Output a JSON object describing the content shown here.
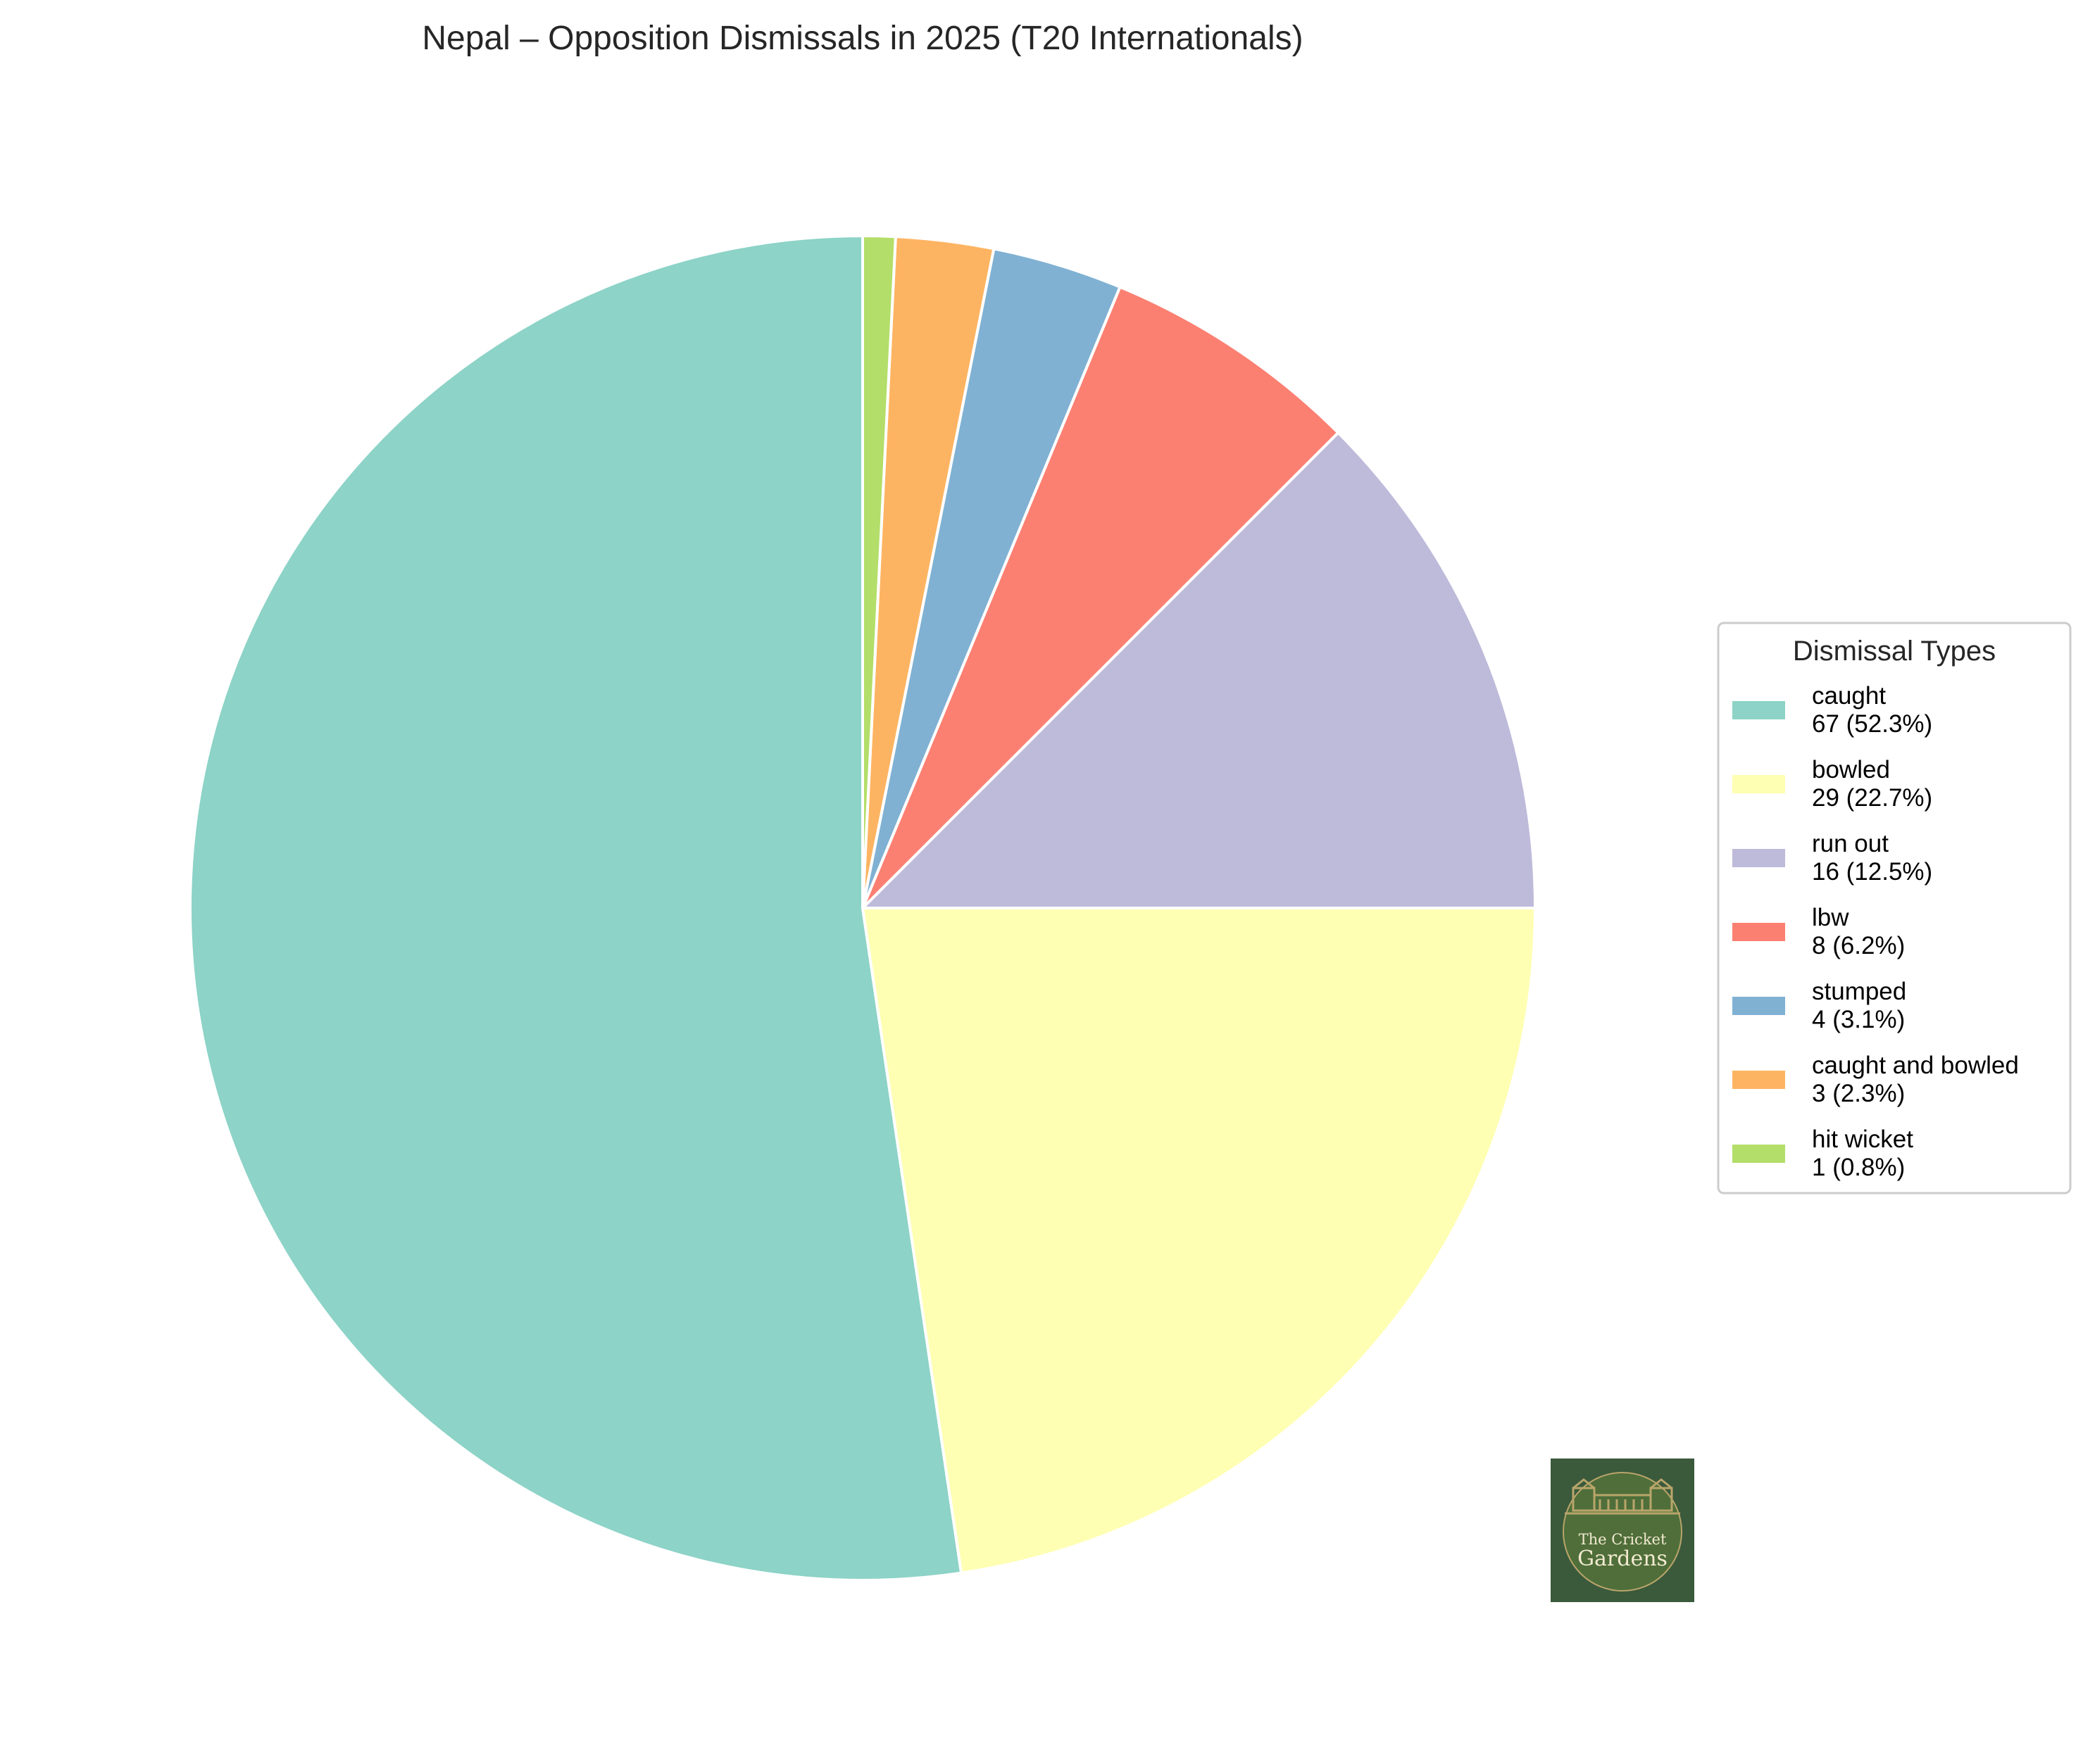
{
  "chart_data": {
    "type": "pie",
    "title": "Nepal – Opposition Dismissals in 2025 (T20 Internationals)",
    "categories": [
      "caught",
      "bowled",
      "run out",
      "lbw",
      "stumped",
      "caught and bowled",
      "hit wicket"
    ],
    "values": [
      67,
      29,
      16,
      8,
      4,
      3,
      1
    ],
    "value_labels": [
      "67 (52.3%)",
      "29 (22.7%)",
      "16 (12.5%)",
      "8 (6.2%)",
      "4 (3.1%)",
      "3 (2.3%)",
      "1 (0.8%)"
    ],
    "colors": [
      "#8dd3c7",
      "#ffffb3",
      "#bebada",
      "#fb8072",
      "#80b1d3",
      "#fdb462",
      "#b3de69"
    ],
    "start_angle_deg": 90,
    "direction": "counterclockwise",
    "legend": {
      "title": "Dismissal Types",
      "placement": "right"
    }
  },
  "logo": {
    "line1": "The Cricket",
    "line2": "Gardens",
    "background": "#3b5a3c",
    "circle": "#4f6e3a",
    "text_color": "#f2ead0",
    "ornament": "#b9a56a"
  }
}
